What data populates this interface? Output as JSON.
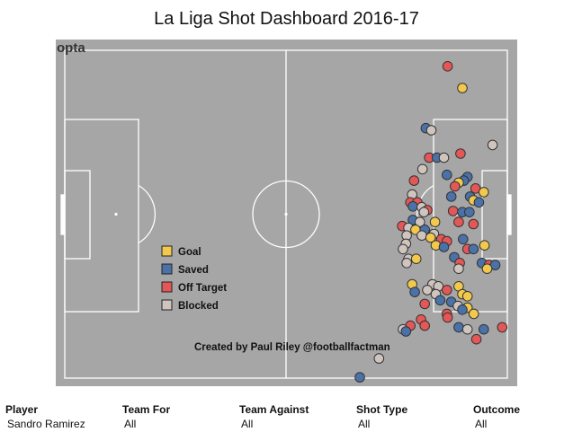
{
  "title": "La Liga Shot Dashboard 2016-17",
  "pitch": {
    "logo": "opta",
    "colors": {
      "pitch": "#a6a6a6",
      "lines": "#ffffff",
      "dot_stroke": "#333333"
    },
    "credit": "Created by Paul Riley @footballfactman",
    "legend": [
      {
        "key": "goal",
        "label": "Goal",
        "color": "#f2c94c"
      },
      {
        "key": "saved",
        "label": "Saved",
        "color": "#4a72a8"
      },
      {
        "key": "off",
        "label": "Off Target",
        "color": "#e45757"
      },
      {
        "key": "blocked",
        "label": "Blocked",
        "color": "#cfc4be"
      }
    ]
  },
  "shots": [
    {
      "x": 103.8,
      "y": 3.9,
      "outcome": "off"
    },
    {
      "x": 107.8,
      "y": 9.2,
      "outcome": "goal"
    },
    {
      "x": 97.9,
      "y": 19.0,
      "outcome": "saved"
    },
    {
      "x": 99.4,
      "y": 19.5,
      "outcome": "blocked"
    },
    {
      "x": 116.0,
      "y": 23.1,
      "outcome": "blocked"
    },
    {
      "x": 98.8,
      "y": 26.2,
      "outcome": "off"
    },
    {
      "x": 100.9,
      "y": 26.2,
      "outcome": "saved"
    },
    {
      "x": 102.8,
      "y": 26.2,
      "outcome": "blocked"
    },
    {
      "x": 107.3,
      "y": 25.2,
      "outcome": "off"
    },
    {
      "x": 109.2,
      "y": 30.9,
      "outcome": "saved"
    },
    {
      "x": 97.0,
      "y": 29.0,
      "outcome": "blocked"
    },
    {
      "x": 103.6,
      "y": 30.4,
      "outcome": "saved"
    },
    {
      "x": 108.2,
      "y": 31.8,
      "outcome": "saved"
    },
    {
      "x": 94.7,
      "y": 31.8,
      "outcome": "off"
    },
    {
      "x": 106.8,
      "y": 32.3,
      "outcome": "goal"
    },
    {
      "x": 105.8,
      "y": 33.2,
      "outcome": "off"
    },
    {
      "x": 111.4,
      "y": 33.7,
      "outcome": "off"
    },
    {
      "x": 113.6,
      "y": 34.6,
      "outcome": "goal"
    },
    {
      "x": 94.2,
      "y": 35.2,
      "outcome": "blocked"
    },
    {
      "x": 104.8,
      "y": 35.7,
      "outcome": "saved"
    },
    {
      "x": 109.9,
      "y": 35.7,
      "outcome": "saved"
    },
    {
      "x": 110.8,
      "y": 36.6,
      "outcome": "goal"
    },
    {
      "x": 93.7,
      "y": 37.1,
      "outcome": "off"
    },
    {
      "x": 95.6,
      "y": 37.1,
      "outcome": "off"
    },
    {
      "x": 112.3,
      "y": 37.1,
      "outcome": "saved"
    },
    {
      "x": 94.4,
      "y": 38.1,
      "outcome": "saved"
    },
    {
      "x": 96.8,
      "y": 38.3,
      "outcome": "blocked"
    },
    {
      "x": 98.3,
      "y": 39.0,
      "outcome": "off"
    },
    {
      "x": 97.4,
      "y": 39.5,
      "outcome": "blocked"
    },
    {
      "x": 105.3,
      "y": 39.2,
      "outcome": "off"
    },
    {
      "x": 107.8,
      "y": 39.5,
      "outcome": "saved"
    },
    {
      "x": 109.7,
      "y": 39.5,
      "outcome": "saved"
    },
    {
      "x": 94.4,
      "y": 41.4,
      "outcome": "saved"
    },
    {
      "x": 96.3,
      "y": 41.9,
      "outcome": "blocked"
    },
    {
      "x": 100.4,
      "y": 41.9,
      "outcome": "goal"
    },
    {
      "x": 106.8,
      "y": 41.9,
      "outcome": "off"
    },
    {
      "x": 110.8,
      "y": 42.4,
      "outcome": "off"
    },
    {
      "x": 91.5,
      "y": 42.9,
      "outcome": "off"
    },
    {
      "x": 93.2,
      "y": 43.3,
      "outcome": "blocked"
    },
    {
      "x": 95.1,
      "y": 43.8,
      "outcome": "goal"
    },
    {
      "x": 97.6,
      "y": 43.8,
      "outcome": "saved"
    },
    {
      "x": 100.1,
      "y": 44.8,
      "outcome": "blocked"
    },
    {
      "x": 92.7,
      "y": 45.2,
      "outcome": "blocked"
    },
    {
      "x": 96.8,
      "y": 45.2,
      "outcome": "blocked"
    },
    {
      "x": 99.2,
      "y": 45.7,
      "outcome": "goal"
    },
    {
      "x": 102.1,
      "y": 46.1,
      "outcome": "off"
    },
    {
      "x": 103.6,
      "y": 46.6,
      "outcome": "off"
    },
    {
      "x": 108.0,
      "y": 46.1,
      "outcome": "saved"
    },
    {
      "x": 92.5,
      "y": 47.2,
      "outcome": "blocked"
    },
    {
      "x": 100.6,
      "y": 47.6,
      "outcome": "goal"
    },
    {
      "x": 91.7,
      "y": 48.5,
      "outcome": "blocked"
    },
    {
      "x": 102.8,
      "y": 48.0,
      "outcome": "saved"
    },
    {
      "x": 109.2,
      "y": 48.5,
      "outcome": "off"
    },
    {
      "x": 110.8,
      "y": 48.5,
      "outcome": "saved"
    },
    {
      "x": 113.8,
      "y": 47.6,
      "outcome": "goal"
    },
    {
      "x": 93.2,
      "y": 50.9,
      "outcome": "blocked"
    },
    {
      "x": 95.3,
      "y": 50.9,
      "outcome": "goal"
    },
    {
      "x": 105.6,
      "y": 50.5,
      "outcome": "saved"
    },
    {
      "x": 107.1,
      "y": 51.9,
      "outcome": "off"
    },
    {
      "x": 113.1,
      "y": 51.9,
      "outcome": "saved"
    },
    {
      "x": 115.0,
      "y": 52.4,
      "outcome": "off"
    },
    {
      "x": 92.7,
      "y": 51.9,
      "outcome": "blocked"
    },
    {
      "x": 106.8,
      "y": 53.3,
      "outcome": "blocked"
    },
    {
      "x": 116.7,
      "y": 52.4,
      "outcome": "saved"
    },
    {
      "x": 114.5,
      "y": 53.3,
      "outcome": "goal"
    },
    {
      "x": 99.7,
      "y": 57.1,
      "outcome": "blocked"
    },
    {
      "x": 101.3,
      "y": 57.6,
      "outcome": "blocked"
    },
    {
      "x": 103.6,
      "y": 58.5,
      "outcome": "off"
    },
    {
      "x": 106.8,
      "y": 57.6,
      "outcome": "goal"
    },
    {
      "x": 94.2,
      "y": 57.1,
      "outcome": "goal"
    },
    {
      "x": 94.9,
      "y": 59.0,
      "outcome": "saved"
    },
    {
      "x": 98.3,
      "y": 58.5,
      "outcome": "blocked"
    },
    {
      "x": 100.6,
      "y": 59.5,
      "outcome": "blocked"
    },
    {
      "x": 107.8,
      "y": 59.5,
      "outcome": "goal"
    },
    {
      "x": 109.2,
      "y": 60.0,
      "outcome": "goal"
    },
    {
      "x": 101.8,
      "y": 61.0,
      "outcome": "saved"
    },
    {
      "x": 104.8,
      "y": 61.4,
      "outcome": "saved"
    },
    {
      "x": 106.6,
      "y": 62.4,
      "outcome": "blocked"
    },
    {
      "x": 109.2,
      "y": 62.8,
      "outcome": "goal"
    },
    {
      "x": 107.8,
      "y": 63.3,
      "outcome": "saved"
    },
    {
      "x": 97.6,
      "y": 61.9,
      "outcome": "off"
    },
    {
      "x": 103.6,
      "y": 64.3,
      "outcome": "off"
    },
    {
      "x": 96.6,
      "y": 65.7,
      "outcome": "off"
    },
    {
      "x": 110.9,
      "y": 64.3,
      "outcome": "goal"
    },
    {
      "x": 103.8,
      "y": 65.2,
      "outcome": "off"
    },
    {
      "x": 93.7,
      "y": 67.2,
      "outcome": "off"
    },
    {
      "x": 91.7,
      "y": 68.1,
      "outcome": "blocked"
    },
    {
      "x": 92.5,
      "y": 68.6,
      "outcome": "saved"
    },
    {
      "x": 97.6,
      "y": 67.2,
      "outcome": "off"
    },
    {
      "x": 106.8,
      "y": 67.6,
      "outcome": "saved"
    },
    {
      "x": 109.2,
      "y": 68.1,
      "outcome": "blocked"
    },
    {
      "x": 113.6,
      "y": 68.1,
      "outcome": "saved"
    },
    {
      "x": 118.6,
      "y": 67.6,
      "outcome": "off"
    },
    {
      "x": 111.6,
      "y": 70.5,
      "outcome": "off"
    },
    {
      "x": 85.2,
      "y": 75.2,
      "outcome": "blocked"
    },
    {
      "x": 80.0,
      "y": 79.8,
      "outcome": "saved"
    }
  ],
  "filters": [
    {
      "label": "Player",
      "value": "Sandro Ramirez"
    },
    {
      "label": "Team For",
      "value": "All"
    },
    {
      "label": "Team Against",
      "value": "All"
    },
    {
      "label": "Shot Type",
      "value": "All"
    },
    {
      "label": "Outcome",
      "value": "All"
    }
  ]
}
